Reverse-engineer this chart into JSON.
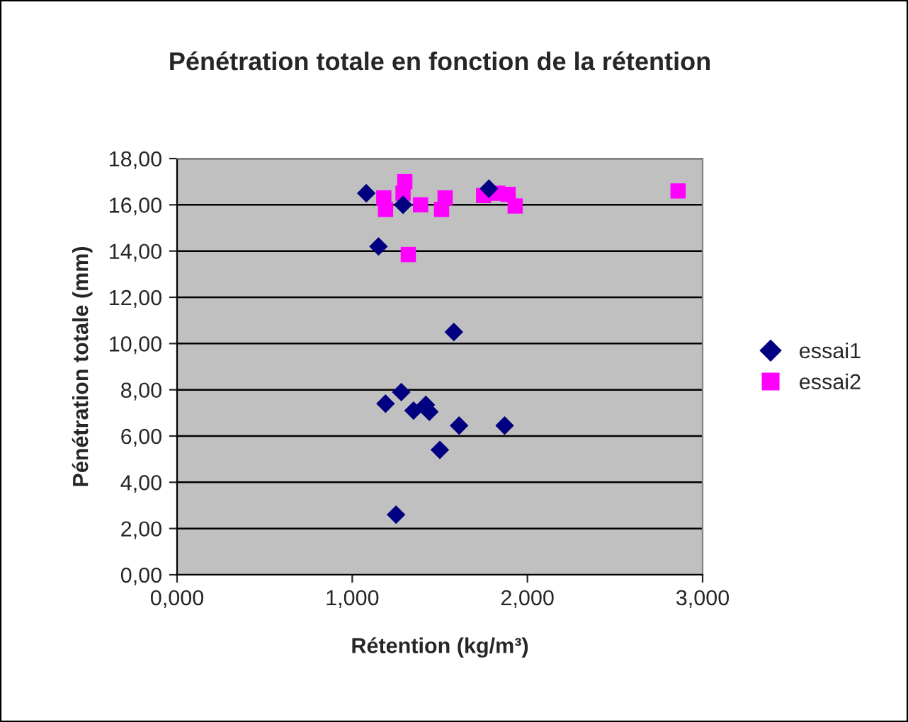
{
  "chart_data": {
    "type": "scatter",
    "title": "Pénétration totale en fonction de la rétention",
    "xlabel": "Rétention (kg/m³)",
    "ylabel": "Pénétration totale (mm)",
    "xlim": [
      0,
      3
    ],
    "xticks": [
      {
        "value": 0,
        "label": "0,000"
      },
      {
        "value": 1,
        "label": "1,000"
      },
      {
        "value": 2,
        "label": "2,000"
      },
      {
        "value": 3,
        "label": "3,000"
      }
    ],
    "ylim": [
      0,
      18
    ],
    "yticks": [
      {
        "value": 0,
        "label": "0,00"
      },
      {
        "value": 2,
        "label": "2,00"
      },
      {
        "value": 4,
        "label": "4,00"
      },
      {
        "value": 6,
        "label": "6,00"
      },
      {
        "value": 8,
        "label": "8,00"
      },
      {
        "value": 10,
        "label": "10,00"
      },
      {
        "value": 12,
        "label": "12,00"
      },
      {
        "value": 14,
        "label": "14,00"
      },
      {
        "value": 16,
        "label": "16,00"
      },
      {
        "value": 18,
        "label": "18,00"
      }
    ],
    "grid": "y",
    "legend": "right",
    "series": [
      {
        "name": "essai1",
        "color": "#000080",
        "marker": "diamond",
        "x": [
          1.08,
          1.15,
          1.29,
          1.58,
          1.78,
          1.19,
          1.28,
          1.35,
          1.42,
          1.44,
          1.5,
          1.61,
          1.87,
          1.25
        ],
        "values": [
          16.5,
          14.2,
          16.0,
          10.5,
          16.7,
          7.4,
          7.9,
          7.1,
          7.35,
          7.05,
          5.4,
          6.45,
          6.45,
          2.6
        ]
      },
      {
        "name": "essai2",
        "color": "#ff00ff",
        "marker": "square",
        "x": [
          1.18,
          1.19,
          1.3,
          1.29,
          1.39,
          1.32,
          1.51,
          1.53,
          1.75,
          1.83,
          1.89,
          1.93,
          2.86
        ],
        "values": [
          16.3,
          15.8,
          17.0,
          16.5,
          16.0,
          13.85,
          15.8,
          16.3,
          16.4,
          16.5,
          16.45,
          15.95,
          16.6
        ]
      }
    ]
  }
}
